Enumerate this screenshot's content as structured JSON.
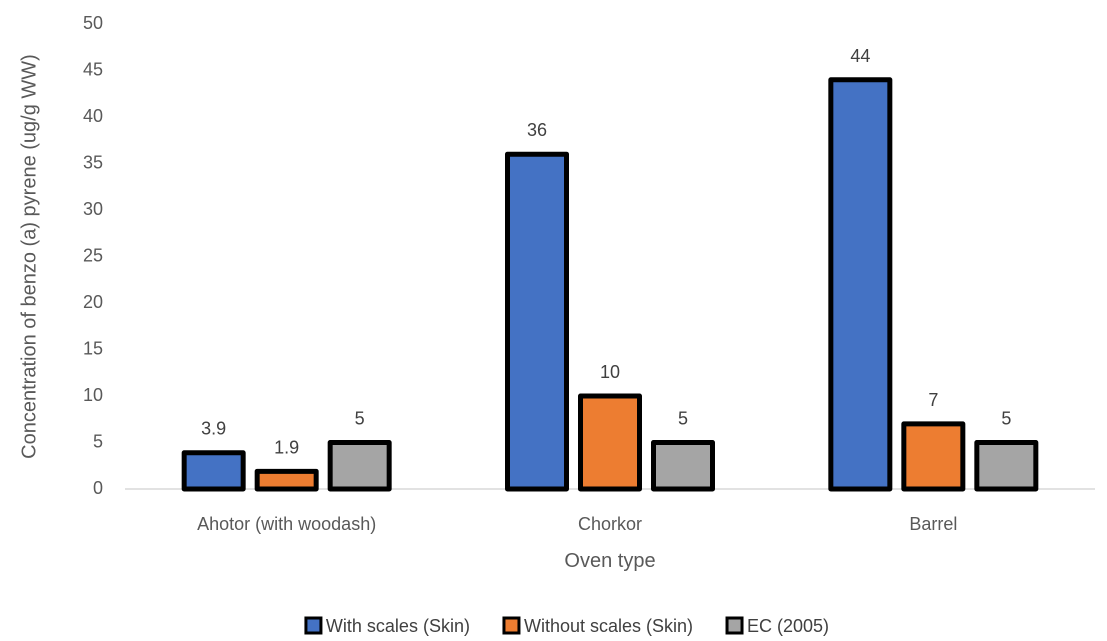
{
  "chart_data": {
    "type": "bar",
    "title": "",
    "xlabel": "Oven type",
    "ylabel": "Concentration of benzo (a) pyrene (ug/g WW)",
    "categories": [
      "Ahotor (with woodash)",
      "Chorkor",
      "Barrel"
    ],
    "series": [
      {
        "name": "With scales (Skin)",
        "values": [
          3.9,
          36,
          44
        ],
        "labels": [
          "3.9",
          "36",
          "44"
        ],
        "color": "#4472C4"
      },
      {
        "name": "Without scales (Skin)",
        "values": [
          1.9,
          10,
          7
        ],
        "labels": [
          "1.9",
          "10",
          "7"
        ],
        "color": "#ED7D31"
      },
      {
        "name": "EC (2005)",
        "values": [
          5,
          5,
          5
        ],
        "labels": [
          "5",
          "5",
          "5"
        ],
        "color": "#A5A5A5"
      }
    ],
    "ylim": [
      0,
      50
    ],
    "yticks": [
      "0",
      "5",
      "10",
      "15",
      "20",
      "25",
      "30",
      "35",
      "40",
      "45",
      "50"
    ],
    "grid": false,
    "legend": "bottom",
    "bar_outline_color": "#000000"
  }
}
